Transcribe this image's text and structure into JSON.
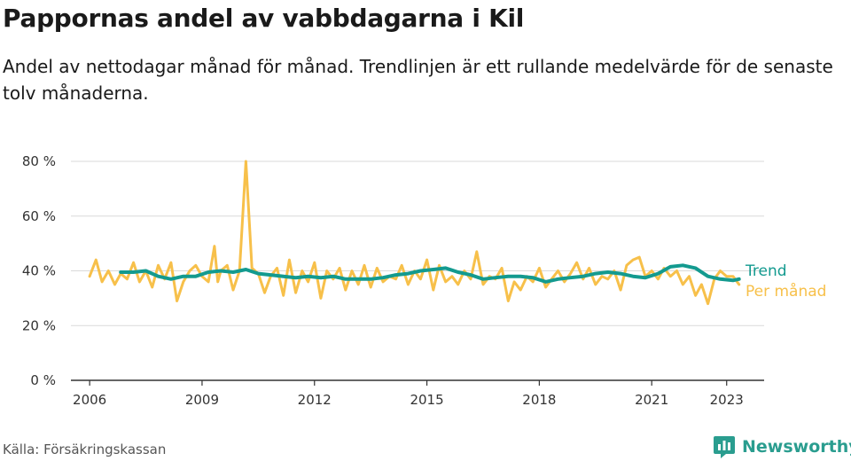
{
  "header": {
    "title": "Pappornas andel av vabbdagarna i Kil",
    "subtitle": "Andel av nettodagar månad för månad. Trendlinjen är ett rullande medelvärde för de senaste tolv månaderna."
  },
  "footer": {
    "source": "Källa: Försäkringskassan",
    "brand": "Newsworthy"
  },
  "colors": {
    "trend": "#139a8f",
    "monthly": "#f7c04a",
    "grid": "#d9d9d9",
    "axis": "#333333",
    "brand": "#2a9d8f"
  },
  "chart_data": {
    "type": "line",
    "title": "Pappornas andel av vabbdagarna i Kil",
    "xlabel": "",
    "ylabel": "",
    "xlim": [
      2005.5,
      2024.0
    ],
    "ylim": [
      0,
      80
    ],
    "y_ticks": [
      0,
      20,
      40,
      60,
      80
    ],
    "y_tick_labels": [
      "0 %",
      "20 %",
      "40 %",
      "60 %",
      "80 %"
    ],
    "x_ticks": [
      2006,
      2009,
      2012,
      2015,
      2018,
      2021,
      2023
    ],
    "x_tick_labels": [
      "2006",
      "2009",
      "2012",
      "2015",
      "2018",
      "2021",
      "2023"
    ],
    "grid": true,
    "legend": "right",
    "series": [
      {
        "name": "Per månad",
        "color": "#f7c04a",
        "x": [
          2006.0,
          2006.17,
          2006.33,
          2006.5,
          2006.67,
          2006.83,
          2007.0,
          2007.17,
          2007.33,
          2007.5,
          2007.67,
          2007.83,
          2008.0,
          2008.17,
          2008.33,
          2008.5,
          2008.67,
          2008.83,
          2009.0,
          2009.17,
          2009.33,
          2009.42,
          2009.5,
          2009.67,
          2009.83,
          2010.0,
          2010.17,
          2010.33,
          2010.5,
          2010.67,
          2010.83,
          2011.0,
          2011.17,
          2011.33,
          2011.5,
          2011.67,
          2011.83,
          2012.0,
          2012.17,
          2012.33,
          2012.5,
          2012.67,
          2012.83,
          2013.0,
          2013.17,
          2013.33,
          2013.5,
          2013.67,
          2013.83,
          2014.0,
          2014.17,
          2014.33,
          2014.5,
          2014.67,
          2014.83,
          2015.0,
          2015.17,
          2015.33,
          2015.5,
          2015.67,
          2015.83,
          2016.0,
          2016.17,
          2016.33,
          2016.5,
          2016.67,
          2016.83,
          2017.0,
          2017.17,
          2017.33,
          2017.5,
          2017.67,
          2017.83,
          2018.0,
          2018.17,
          2018.33,
          2018.5,
          2018.67,
          2018.83,
          2019.0,
          2019.17,
          2019.33,
          2019.5,
          2019.67,
          2019.83,
          2020.0,
          2020.17,
          2020.33,
          2020.5,
          2020.67,
          2020.83,
          2021.0,
          2021.17,
          2021.33,
          2021.5,
          2021.67,
          2021.83,
          2022.0,
          2022.17,
          2022.33,
          2022.5,
          2022.67,
          2022.83,
          2023.0,
          2023.17,
          2023.33
        ],
        "values": [
          38,
          44,
          36,
          40,
          35,
          39,
          37,
          43,
          36,
          40,
          34,
          42,
          37,
          43,
          29,
          36,
          40,
          42,
          38,
          36,
          49,
          36,
          40,
          42,
          33,
          40,
          80,
          41,
          39,
          32,
          38,
          41,
          31,
          44,
          32,
          40,
          36,
          43,
          30,
          40,
          37,
          41,
          33,
          40,
          35,
          42,
          34,
          41,
          36,
          38,
          37,
          42,
          35,
          40,
          37,
          44,
          33,
          42,
          36,
          38,
          35,
          40,
          37,
          47,
          35,
          38,
          37,
          41,
          29,
          36,
          33,
          38,
          36,
          41,
          34,
          37,
          40,
          36,
          39,
          43,
          37,
          41,
          35,
          38,
          37,
          40,
          33,
          42,
          44,
          45,
          38,
          40,
          37,
          41,
          38,
          40,
          35,
          38,
          31,
          35,
          28,
          37,
          40,
          38,
          38,
          35
        ]
      },
      {
        "name": "Trend",
        "color": "#139a8f",
        "x": [
          2006.83,
          2007.17,
          2007.5,
          2007.83,
          2008.17,
          2008.5,
          2008.83,
          2009.17,
          2009.5,
          2009.83,
          2010.17,
          2010.5,
          2010.83,
          2011.17,
          2011.5,
          2011.83,
          2012.17,
          2012.5,
          2012.83,
          2013.17,
          2013.5,
          2013.83,
          2014.17,
          2014.5,
          2014.83,
          2015.17,
          2015.5,
          2015.83,
          2016.17,
          2016.5,
          2016.83,
          2017.17,
          2017.5,
          2017.83,
          2018.17,
          2018.5,
          2018.83,
          2019.17,
          2019.5,
          2019.83,
          2020.17,
          2020.5,
          2020.83,
          2021.17,
          2021.5,
          2021.83,
          2022.17,
          2022.5,
          2022.83,
          2023.17,
          2023.33
        ],
        "values": [
          39.5,
          39.5,
          40.0,
          38.0,
          37.0,
          38.0,
          38.0,
          39.5,
          40.0,
          39.5,
          40.5,
          39.0,
          38.5,
          38.0,
          37.5,
          38.0,
          37.5,
          38.0,
          37.0,
          37.0,
          37.0,
          37.5,
          38.5,
          39.0,
          40.0,
          40.5,
          41.0,
          39.5,
          38.5,
          37.0,
          37.5,
          38.0,
          38.0,
          37.5,
          36.0,
          37.0,
          37.5,
          38.0,
          39.0,
          39.5,
          39.0,
          38.0,
          37.5,
          39.0,
          41.5,
          42.0,
          41.0,
          38.0,
          37.0,
          36.5,
          37.0
        ]
      }
    ]
  }
}
